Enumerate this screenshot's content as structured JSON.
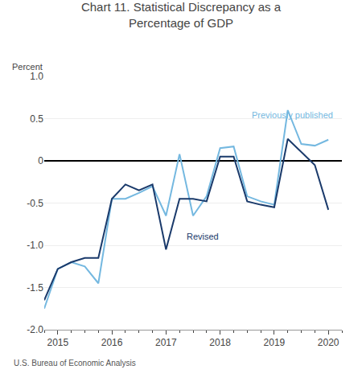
{
  "chart_data": {
    "type": "line",
    "title": "Chart 11. Statistical Discrepancy as a\nPercentage of GDP",
    "ylabel": "Percent",
    "source": "U.S. Bureau of Economic Analysis",
    "series": [
      {
        "name": "Previously published",
        "color": "#74B8E0",
        "x": [
          2014.75,
          2015.0,
          2015.25,
          2015.5,
          2015.75,
          2016.0,
          2016.25,
          2016.5,
          2016.75,
          2017.0,
          2017.25,
          2017.5,
          2017.75,
          2018.0,
          2018.25,
          2018.5,
          2018.75,
          2019.0,
          2019.25,
          2019.5,
          2019.75,
          2020.0
        ],
        "values": [
          -1.75,
          -1.28,
          -1.2,
          -1.25,
          -1.45,
          -0.45,
          -0.45,
          -0.38,
          -0.3,
          -0.65,
          0.08,
          -0.65,
          -0.42,
          0.15,
          0.17,
          -0.42,
          -0.48,
          -0.52,
          0.6,
          0.2,
          0.18,
          0.25
        ]
      },
      {
        "name": "Revised",
        "color": "#1A3A6B",
        "x": [
          2014.75,
          2015.0,
          2015.25,
          2015.5,
          2015.75,
          2016.0,
          2016.25,
          2016.5,
          2016.75,
          2017.0,
          2017.25,
          2017.5,
          2017.75,
          2018.0,
          2018.25,
          2018.5,
          2018.75,
          2019.0,
          2019.25,
          2019.5,
          2019.75,
          2020.0
        ],
        "values": [
          -1.65,
          -1.28,
          -1.2,
          -1.15,
          -1.15,
          -0.45,
          -0.28,
          -0.35,
          -0.28,
          -1.05,
          -0.45,
          -0.45,
          -0.48,
          0.05,
          0.05,
          -0.48,
          -0.52,
          -0.55,
          0.26,
          0.1,
          -0.05,
          -0.58
        ]
      }
    ],
    "annotations": [
      {
        "text": "Revised",
        "x": 2017.35,
        "y": -0.82
      },
      {
        "text": "Previously published",
        "x": 2018.55,
        "y": 0.47
      }
    ],
    "xlim": [
      2014.75,
      2020.25
    ],
    "xticks": [
      2015,
      2016,
      2017,
      2018,
      2019,
      2020
    ],
    "ylim": [
      -2.0,
      1.0
    ],
    "yticks": [
      {
        "value": -2.0,
        "label": "-2.0"
      },
      -1.5,
      {
        "value": -1.0,
        "label": "-1.0"
      },
      -0.5,
      0,
      0.5,
      {
        "value": 1.0,
        "label": "1.0"
      }
    ],
    "grid": true
  }
}
